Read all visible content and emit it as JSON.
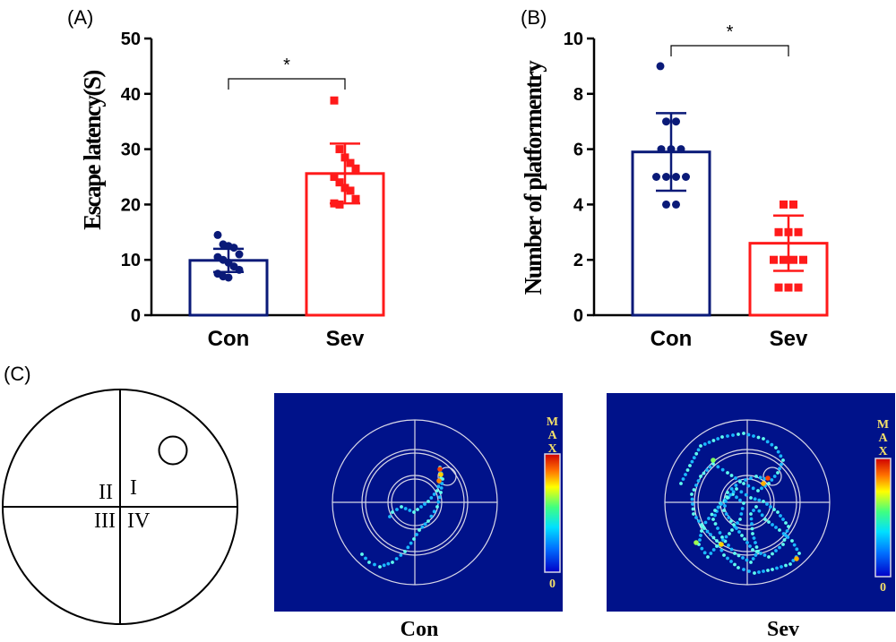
{
  "panels": {
    "a_label": "(A)",
    "b_label": "(B)",
    "c_label": "(C)"
  },
  "colors": {
    "con": "#0a1a78",
    "sev": "#ff1a1a",
    "track_bg": "#00128a"
  },
  "chart_data": [
    {
      "type": "bar",
      "id": "A",
      "categories": [
        "Con",
        "Sev"
      ],
      "values": [
        9.9,
        25.6
      ],
      "error": [
        2.1,
        5.4
      ],
      "ylabel": "Escape latency(S)",
      "ylim": [
        0,
        50
      ],
      "yticks": [
        "0",
        "10",
        "20",
        "30",
        "40",
        "50"
      ],
      "significance": "*",
      "points": {
        "Con": [
          14.5,
          12.8,
          12.5,
          12.2,
          11.0,
          10.5,
          10.0,
          9.5,
          8.8,
          8.2,
          7.5,
          7.0,
          6.8
        ],
        "Sev": [
          38.8,
          30.0,
          28.5,
          27.5,
          26.5,
          25.0,
          24.0,
          23.0,
          22.5,
          21.0,
          20.2,
          20.0
        ]
      },
      "grid": false
    },
    {
      "type": "bar",
      "id": "B",
      "categories": [
        "Con",
        "Sev"
      ],
      "values": [
        5.9,
        2.6
      ],
      "error": [
        1.4,
        1.0
      ],
      "ylabel": "Number of platformentry",
      "ylim": [
        0,
        10
      ],
      "yticks": [
        "0",
        "2",
        "4",
        "6",
        "8",
        "10"
      ],
      "significance": "*",
      "points": {
        "Con": [
          9,
          7,
          7,
          6,
          6,
          6,
          5,
          5,
          5,
          5,
          4,
          4
        ],
        "Sev": [
          4,
          4,
          3,
          3,
          3,
          2,
          2,
          2,
          2,
          1,
          1,
          1
        ]
      },
      "grid": false
    }
  ],
  "maze": {
    "quadrants": [
      "I",
      "II",
      "III",
      "IV"
    ]
  },
  "tracks": [
    {
      "caption": "Con",
      "legend_max": "MAX",
      "legend_min": "0"
    },
    {
      "caption": "Sev",
      "legend_max": "MAX",
      "legend_min": "0"
    }
  ]
}
